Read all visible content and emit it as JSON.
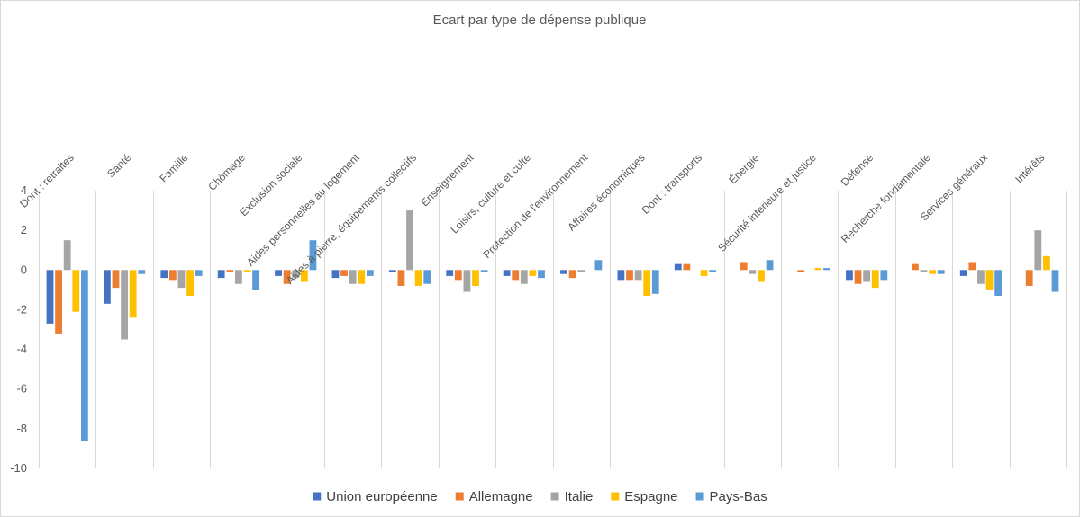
{
  "chart_data": {
    "type": "bar",
    "title": "Ecart par type de dépense publique",
    "xlabel": "",
    "ylabel": "",
    "ylim": [
      -10,
      4
    ],
    "yticks": [
      4,
      2,
      0,
      -2,
      -4,
      -6,
      -8,
      -10
    ],
    "grid": "vertical category separators",
    "legend_position": "bottom",
    "categories": [
      "Dont : retraites",
      "Santé",
      "Famille",
      "Chômage",
      "Exclusion sociale",
      "Aides personnelles au logement",
      "Aides à pierre, équipements collectifs",
      "Enseignement",
      "Loisirs, culture et culte",
      "Protection de l'environnement",
      "Affaires économiques",
      "Dont : transports",
      "Énergie",
      "Sécurité intérieure et justice",
      "Défense",
      "Recherche fondamentale",
      "Services généraux",
      "Intérêts"
    ],
    "series": [
      {
        "name": "Union européenne",
        "color": "#4472c4",
        "values": [
          -2.7,
          -1.7,
          -0.4,
          -0.4,
          -0.3,
          -0.4,
          -0.1,
          -0.3,
          -0.3,
          -0.2,
          -0.5,
          0.3,
          0.0,
          0.0,
          -0.5,
          0.0,
          -0.3,
          0.0
        ]
      },
      {
        "name": "Allemagne",
        "color": "#ed7d31",
        "values": [
          -3.2,
          -0.9,
          -0.5,
          -0.1,
          -0.7,
          -0.3,
          -0.8,
          -0.5,
          -0.5,
          -0.4,
          -0.5,
          0.3,
          0.4,
          -0.1,
          -0.7,
          0.3,
          0.4,
          -0.8
        ]
      },
      {
        "name": "Italie",
        "color": "#a5a5a5",
        "values": [
          1.5,
          -3.5,
          -0.9,
          -0.7,
          -0.4,
          -0.7,
          3.0,
          -1.1,
          -0.7,
          -0.1,
          -0.5,
          0.0,
          -0.2,
          0.0,
          -0.6,
          -0.1,
          -0.7,
          2.0
        ]
      },
      {
        "name": "Espagne",
        "color": "#ffc000",
        "values": [
          -2.1,
          -2.4,
          -1.3,
          -0.1,
          -0.6,
          -0.7,
          -0.8,
          -0.8,
          -0.3,
          0.0,
          -1.3,
          -0.3,
          -0.6,
          0.1,
          -0.9,
          -0.2,
          -1.0,
          0.7
        ]
      },
      {
        "name": "Pays-Bas",
        "color": "#5b9bd5",
        "values": [
          -8.6,
          -0.2,
          -0.3,
          -1.0,
          1.5,
          -0.3,
          -0.7,
          -0.1,
          -0.4,
          0.5,
          -1.2,
          -0.1,
          0.5,
          0.1,
          -0.5,
          -0.2,
          -1.3,
          -1.1
        ]
      }
    ]
  }
}
